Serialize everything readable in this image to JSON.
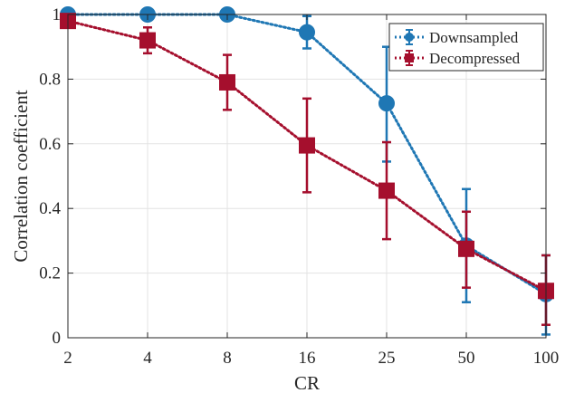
{
  "chart_data": {
    "type": "line",
    "xlabel": "CR",
    "ylabel": "Correlation coefficient",
    "categories": [
      "2",
      "4",
      "8",
      "16",
      "25",
      "50",
      "100"
    ],
    "ylim": [
      0,
      1
    ],
    "yticks": [
      "0",
      "0.2",
      "0.4",
      "0.6",
      "0.8",
      "1"
    ],
    "grid": true,
    "legend_position": "top-right",
    "series": [
      {
        "name": "Downsampled",
        "color": "#1f77b4",
        "marker": "circle",
        "line_style": "dotted",
        "values": [
          1.0,
          1.0,
          1.0,
          0.945,
          0.725,
          0.285,
          0.135
        ],
        "err_low": [
          1.0,
          1.0,
          1.0,
          0.895,
          0.545,
          0.11,
          0.01
        ],
        "err_high": [
          1.0,
          1.0,
          1.0,
          0.995,
          0.9,
          0.46,
          0.255
        ]
      },
      {
        "name": "Decompressed",
        "color": "#a50f2d",
        "marker": "square",
        "line_style": "dotted",
        "values": [
          0.98,
          0.92,
          0.79,
          0.595,
          0.455,
          0.275,
          0.145
        ],
        "err_low": [
          0.98,
          0.88,
          0.705,
          0.45,
          0.305,
          0.155,
          0.04
        ],
        "err_high": [
          0.98,
          0.96,
          0.875,
          0.74,
          0.605,
          0.39,
          0.255
        ]
      }
    ]
  }
}
